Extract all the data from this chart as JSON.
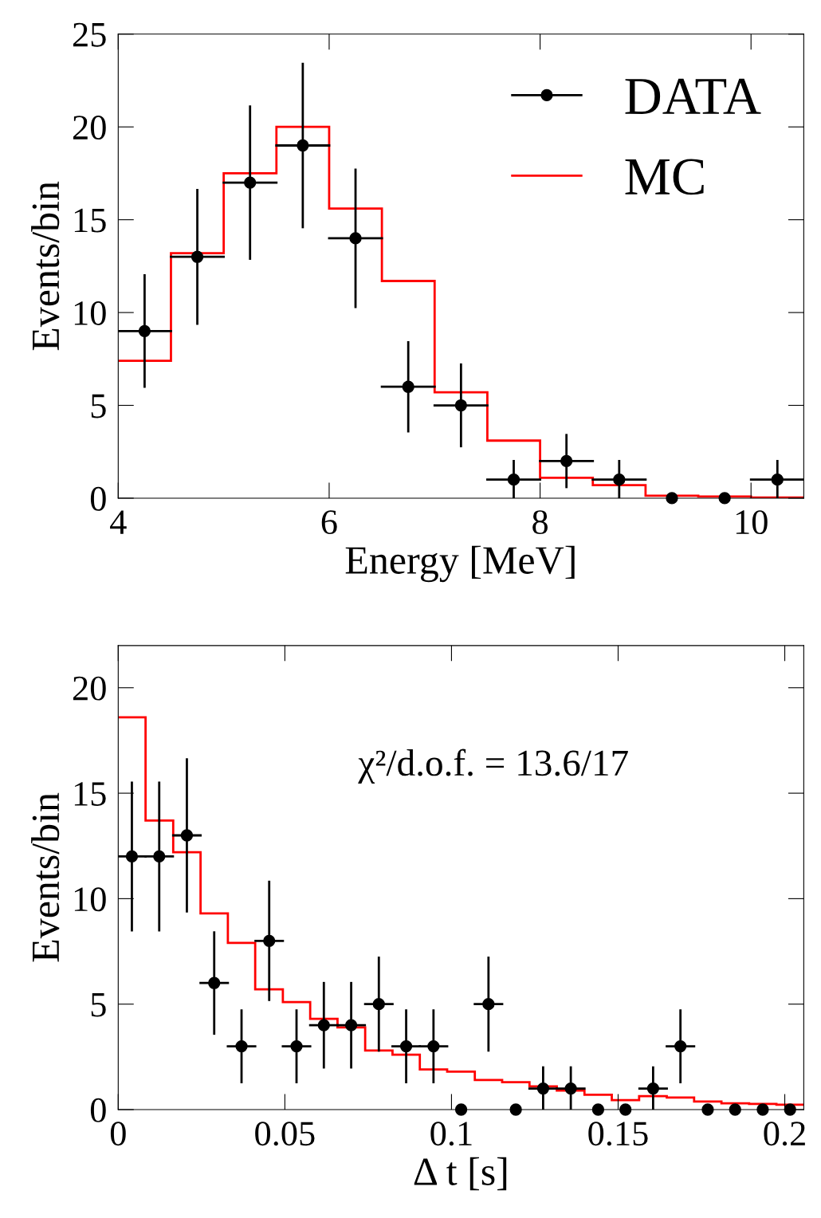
{
  "chart_data": [
    {
      "type": "histogram",
      "xlabel": "Energy [MeV]",
      "ylabel": "Events/bin",
      "xlim": [
        4,
        10.5
      ],
      "xticks": [
        4,
        6,
        8,
        10
      ],
      "ylim": [
        0,
        25
      ],
      "yticks": [
        0,
        5,
        10,
        15,
        20,
        25
      ],
      "grid": false,
      "legend": "top right",
      "marker": "circle",
      "bins": [
        4,
        4.5,
        5,
        5.5,
        6,
        6.5,
        7,
        7.5,
        8,
        8.5,
        9,
        9.5,
        10,
        10.5
      ],
      "series": [
        {
          "name": "DATA",
          "type": "scatter",
          "color": "#000000",
          "x": [
            4.25,
            4.75,
            5.25,
            5.75,
            6.25,
            6.75,
            7.25,
            7.75,
            8.25,
            8.75,
            9.25,
            9.75,
            10.25
          ],
          "values": [
            9,
            13,
            17,
            19,
            14,
            6,
            5,
            1,
            2,
            1,
            0,
            0,
            1
          ],
          "errors": [
            3.0,
            3.6,
            4.1,
            4.4,
            3.7,
            2.4,
            2.2,
            1.0,
            1.4,
            1.0,
            null,
            null,
            1.0
          ],
          "xerrors": [
            0.25,
            0.25,
            0.25,
            0.25,
            0.25,
            0.25,
            0.25,
            0.25,
            0.25,
            0.25,
            null,
            null,
            0.25
          ]
        },
        {
          "name": "MC",
          "color": "#ff0000",
          "values": [
            7.4,
            13.2,
            17.5,
            20.0,
            15.6,
            11.7,
            5.7,
            3.1,
            1.1,
            0.7,
            0.13,
            0.09,
            0.04
          ]
        }
      ]
    },
    {
      "type": "histogram",
      "xlabel": "Δ t [s]",
      "ylabel": "Events/bin",
      "xlim": [
        0,
        0.2057
      ],
      "xticks": [
        0,
        0.05,
        0.1,
        0.15,
        0.2
      ],
      "ylim": [
        0,
        22
      ],
      "yticks": [
        0,
        5,
        10,
        15,
        20
      ],
      "grid": false,
      "legend": false,
      "marker": "circle",
      "annotations": [
        "χ²/d.o.f. = 13.6/17"
      ],
      "bins": [
        0,
        0.0082,
        0.0165,
        0.0247,
        0.0329,
        0.0411,
        0.0494,
        0.0576,
        0.0658,
        0.0741,
        0.0823,
        0.0905,
        0.0987,
        0.107,
        0.1152,
        0.1234,
        0.1316,
        0.1399,
        0.1481,
        0.1563,
        0.1646,
        0.1728,
        0.181,
        0.1893,
        0.1975,
        0.2057
      ],
      "series": [
        {
          "type": "scatter",
          "color": "#000000",
          "x": [
            0.0041,
            0.0123,
            0.0206,
            0.0288,
            0.037,
            0.0453,
            0.0535,
            0.0617,
            0.0699,
            0.0782,
            0.0864,
            0.0946,
            0.1029,
            0.1111,
            0.1193,
            0.1275,
            0.1358,
            0.144,
            0.1522,
            0.1605,
            0.1687,
            0.1769,
            0.1851,
            0.1934,
            0.2016
          ],
          "values": [
            12,
            12,
            13,
            6,
            3,
            8,
            3,
            4,
            4,
            5,
            3,
            3,
            0,
            5,
            0,
            1,
            1,
            0,
            0,
            1,
            3,
            0,
            0,
            0,
            0
          ],
          "errors": [
            3.5,
            3.5,
            3.6,
            2.4,
            1.7,
            2.8,
            1.7,
            2.0,
            2.0,
            2.2,
            1.7,
            1.7,
            null,
            2.2,
            null,
            1.0,
            1.0,
            null,
            null,
            1.0,
            1.7,
            null,
            null,
            null,
            null
          ],
          "xerrors": [
            0.0041,
            0.0041,
            0.0041,
            0.0041,
            0.0041,
            0.0041,
            0.0041,
            0.0041,
            0.0041,
            0.0041,
            0.0041,
            0.0041,
            null,
            0.0041,
            null,
            0.0041,
            0.0041,
            null,
            null,
            0.0041,
            0.0041,
            null,
            null,
            null,
            null
          ]
        },
        {
          "color": "#ff0000",
          "values": [
            18.6,
            13.7,
            12.2,
            9.3,
            7.9,
            5.7,
            5.1,
            4.3,
            3.9,
            2.8,
            2.6,
            1.9,
            1.8,
            1.4,
            1.3,
            1.1,
            0.9,
            0.7,
            0.45,
            0.64,
            0.57,
            0.38,
            0.3,
            0.27,
            0.23
          ]
        }
      ]
    }
  ]
}
